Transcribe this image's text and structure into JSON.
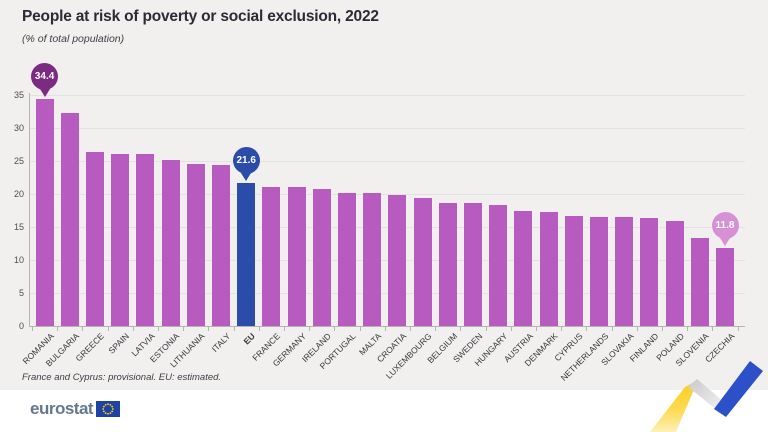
{
  "header": {
    "title": "People at risk of poverty or social exclusion, 2022",
    "subtitle": "(% of total population)"
  },
  "chart_data": {
    "type": "bar",
    "title": "People at risk of poverty or social exclusion, 2022",
    "subtitle": "(% of total population)",
    "categories": [
      "ROMANIA",
      "BULGARIA",
      "GREECE",
      "SPAIN",
      "LATVIA",
      "ESTONIA",
      "LITHUANIA",
      "ITALY",
      "EU",
      "FRANCE",
      "GERMANY",
      "IRELAND",
      "PORTUGAL",
      "MALTA",
      "CROATIA",
      "LUXEMBOURG",
      "BELGIUM",
      "SWEDEN",
      "HUNGARY",
      "AUSTRIA",
      "DENMARK",
      "CYPRUS",
      "NETHERLANDS",
      "SLOVAKIA",
      "FINLAND",
      "POLAND",
      "SLOVENIA",
      "CZECHIA"
    ],
    "values": [
      34.4,
      32.2,
      26.3,
      26.0,
      26.0,
      25.2,
      24.6,
      24.4,
      21.6,
      21.1,
      21.1,
      20.7,
      20.1,
      20.1,
      19.9,
      19.4,
      18.7,
      18.6,
      18.4,
      17.5,
      17.2,
      16.7,
      16.5,
      16.5,
      16.3,
      15.9,
      13.3,
      11.8
    ],
    "highlight_index": 8,
    "highlight_label": "EU",
    "ylim": [
      0,
      35
    ],
    "yticks": [
      0,
      5,
      10,
      15,
      20,
      25,
      30,
      35
    ],
    "grid": true,
    "legend_position": "none",
    "callouts": [
      {
        "index": 0,
        "text": "34.4",
        "color": "#7c2b82",
        "text_color": "#ffffff"
      },
      {
        "index": 8,
        "text": "21.6",
        "color": "#2b4ca8",
        "text_color": "#ffffff"
      },
      {
        "index": 27,
        "text": "11.8",
        "color": "#d78fd5",
        "text_color": "#ffffff"
      }
    ]
  },
  "footnote": "France and Cyprus: provisional. EU: estimated.",
  "footer": {
    "logo_text": "eurostat"
  },
  "colors": {
    "background": "#f1f0ee",
    "bar": "#b75bc0",
    "eu_bar": "#2b4ca8",
    "grid": "#e3e2e0",
    "axis": "#b5b4b2",
    "title": "#2b2b36",
    "text": "#3d3d47",
    "logo": "#64798c",
    "flag_blue": "#1e43a0",
    "star_yellow": "#ffd617",
    "ribbon_yellow": "#fccd1d",
    "ribbon_yellow_light": "#fdf0b8",
    "ribbon_silver": "#c9c9c9",
    "ribbon_blue": "#2b50c8"
  }
}
